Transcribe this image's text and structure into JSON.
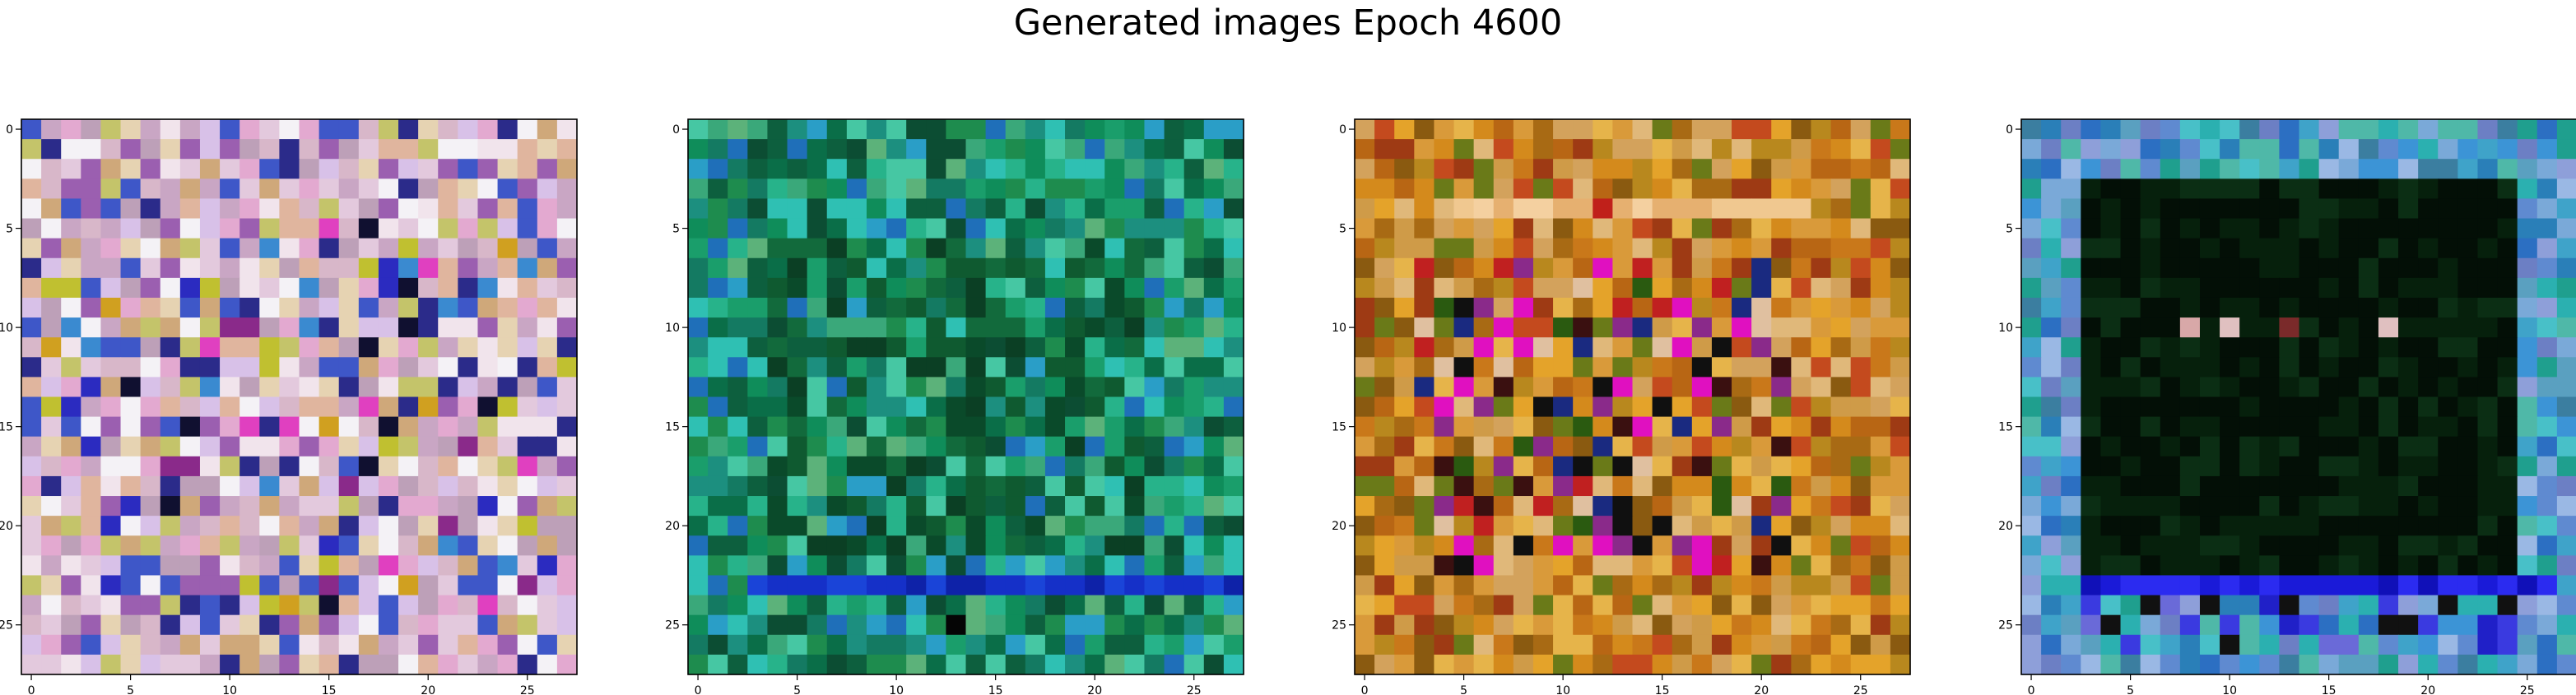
{
  "figure": {
    "title": "Generated images Epoch 4600"
  },
  "colors": {
    "frame": "#000000",
    "background": "#ffffff"
  },
  "panels": [
    {
      "name": "image-1",
      "x_ticks": [
        "0",
        "5",
        "10",
        "15",
        "20",
        "25"
      ],
      "y_ticks": [
        "0",
        "5",
        "10",
        "15",
        "20",
        "25"
      ],
      "palette": [
        "#e3c9dd",
        "#d8b7c9",
        "#f1e4ec",
        "#c9a6c4",
        "#e6d3b2",
        "#bda0b8",
        "#f4f2f6",
        "#d8c1e8",
        "#cfa87a",
        "#9b5fb0",
        "#3e57c8",
        "#e3a9d0",
        "#c4c46a",
        "#2b2b8a",
        "#e0b59e"
      ],
      "palette_name": "pastel-pink"
    },
    {
      "name": "image-2",
      "x_ticks": [
        "0",
        "5",
        "10",
        "15",
        "20",
        "25"
      ],
      "y_ticks": [
        "0",
        "5",
        "10",
        "15",
        "20",
        "25"
      ],
      "palette": [
        "#0f8d5a",
        "#1a9e6b",
        "#0a6e48",
        "#27b38a",
        "#2fc0b3",
        "#147a62",
        "#1c8f7f",
        "#3aa87a",
        "#0d5f3e",
        "#2a9ec7",
        "#1f6fb9",
        "#46c7a3",
        "#0c4d33",
        "#1e8c4e",
        "#5cb27a"
      ],
      "palette_name": "teal-green"
    },
    {
      "name": "image-3",
      "x_ticks": [
        "0",
        "5",
        "10",
        "15",
        "20",
        "25"
      ],
      "y_ticks": [
        "0",
        "5",
        "10",
        "15",
        "20",
        "25"
      ],
      "palette": [
        "#d48a1c",
        "#c9781a",
        "#e4a32a",
        "#b86614",
        "#d99a3a",
        "#a86a14",
        "#cf9b48",
        "#b8881e",
        "#e6b44a",
        "#8a5a10",
        "#6a7a18",
        "#c44a1e",
        "#d3a25c",
        "#9e3a14",
        "#e0b87a"
      ],
      "palette_name": "amber"
    },
    {
      "name": "image-4",
      "x_ticks": [
        "0",
        "5",
        "10",
        "15",
        "20",
        "25"
      ],
      "y_ticks": [
        "0",
        "5",
        "10",
        "15",
        "20",
        "25"
      ],
      "palette": [
        "#2a7fb8",
        "#3fa3c9",
        "#4fb8a8",
        "#5f8ad0",
        "#2bb0b0",
        "#6c7fc4",
        "#3c94d6",
        "#7aa9d8",
        "#1f9f8e",
        "#5aa0c0",
        "#8e9fd9",
        "#2c6fc2",
        "#48c0c8",
        "#3b7ea0",
        "#9ab8e4"
      ],
      "palette_name": "blue-border-dark-center"
    }
  ]
}
